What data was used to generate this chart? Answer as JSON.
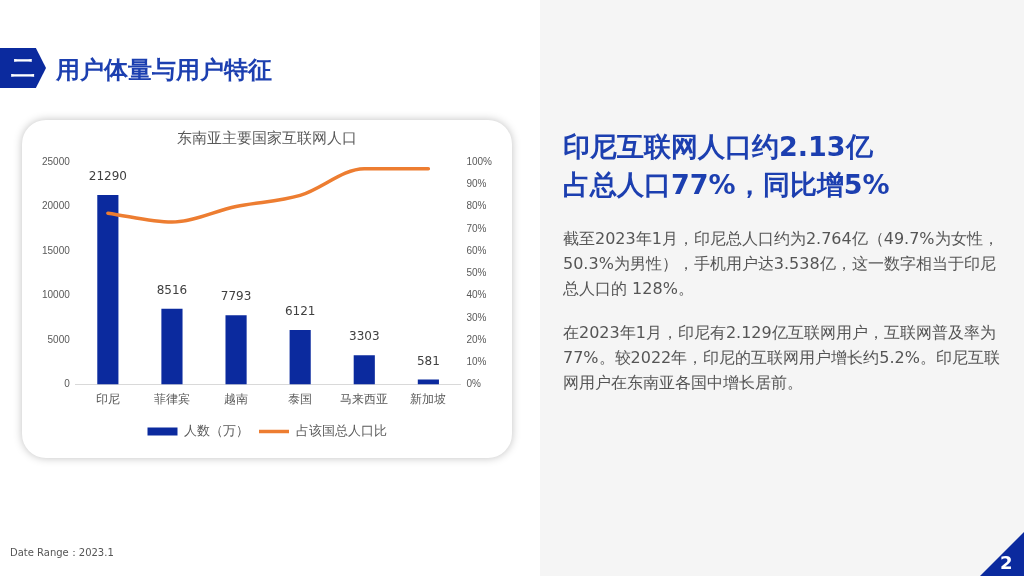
{
  "chart_data": {
    "type": "bar",
    "title": "东南亚主要国家互联网人口",
    "categories": [
      "印尼",
      "菲律宾",
      "越南",
      "泰国",
      "马来西亚",
      "新加坡"
    ],
    "series": [
      {
        "name": "人数（万）",
        "color": "#0b2a9e",
        "values": [
          21290,
          8516,
          7793,
          6121,
          3303,
          581
        ],
        "value_labels": [
          "21290",
          "8516",
          "7793",
          "6121",
          "3303",
          "581"
        ]
      },
      {
        "name": "占该国总人口比",
        "type": "line",
        "axis": "y2",
        "color": "#ed7d31",
        "values": [
          77,
          73,
          80,
          85,
          97,
          97
        ]
      }
    ],
    "ylim": [
      0,
      25000
    ],
    "yticks": [
      0,
      5000,
      10000,
      15000,
      20000,
      25000
    ],
    "y2lim": [
      0,
      100
    ],
    "y2ticks": [
      {
        "value": 0,
        "label": "0%"
      },
      {
        "value": 10,
        "label": "10%"
      },
      {
        "value": 20,
        "label": "20%"
      },
      {
        "value": 30,
        "label": "30%"
      },
      {
        "value": 40,
        "label": "40%"
      },
      {
        "value": 50,
        "label": "50%"
      },
      {
        "value": 60,
        "label": "60%"
      },
      {
        "value": 70,
        "label": "70%"
      },
      {
        "value": 80,
        "label": "80%"
      },
      {
        "value": 90,
        "label": "90%"
      },
      {
        "value": 100,
        "label": "100%"
      }
    ],
    "legend": "bottom",
    "marker": "none",
    "line_style": "solid",
    "annotations": [
      "二",
      "用户体量与用户特征",
      "印尼互联网人口约2.13亿",
      "占总人口77%，同比增5%",
      "截至2023年1月，印尼总人口约为2.764亿（49.7%为女性，50.3%为男性），手机用户达3.538亿，这一数字相当于印尼总人口的 128%。",
      "在2023年1月，印尼有2.129亿互联网用户，互联网普及率为77%。较2022年，印尼的互联网用户增长约5.2%。印尼互联网用户在东南亚各国中增长居前。",
      "Date Range：2023.1",
      "2"
    ]
  }
}
